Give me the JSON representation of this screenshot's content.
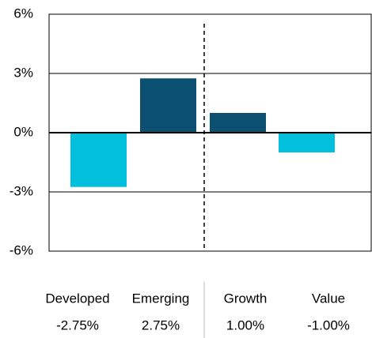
{
  "chart_data": {
    "type": "bar",
    "categories": [
      "Developed",
      "Emerging",
      "Growth",
      "Value"
    ],
    "values": [
      -2.75,
      2.75,
      1.0,
      -1.0
    ],
    "value_labels": [
      "-2.75%",
      "2.75%",
      "1.00%",
      "-1.00%"
    ],
    "colors": [
      "#00c0de",
      "#0b4f71",
      "#0b4f71",
      "#00c0de"
    ],
    "ylim": [
      -6,
      6
    ],
    "yticks": [
      {
        "value": -6,
        "label": "-6%"
      },
      {
        "value": -3,
        "label": "-3%"
      },
      {
        "value": 0,
        "label": "0%"
      },
      {
        "value": 3,
        "label": "3%"
      },
      {
        "value": 6,
        "label": "6%"
      }
    ],
    "grid": true
  }
}
